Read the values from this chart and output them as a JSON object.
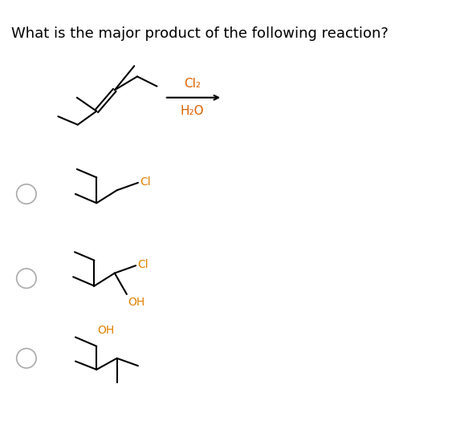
{
  "title": "What is the major product of the following reaction?",
  "title_fontsize": 13,
  "title_color": "#000000",
  "bg_color": "#ffffff",
  "reagent_top": "Cl₂",
  "reagent_bottom": "H₂O",
  "line_color": "#000000",
  "label_cl_color": "#e08000",
  "label_oh_color": "#e08000",
  "radio_color": "#aaaaaa"
}
